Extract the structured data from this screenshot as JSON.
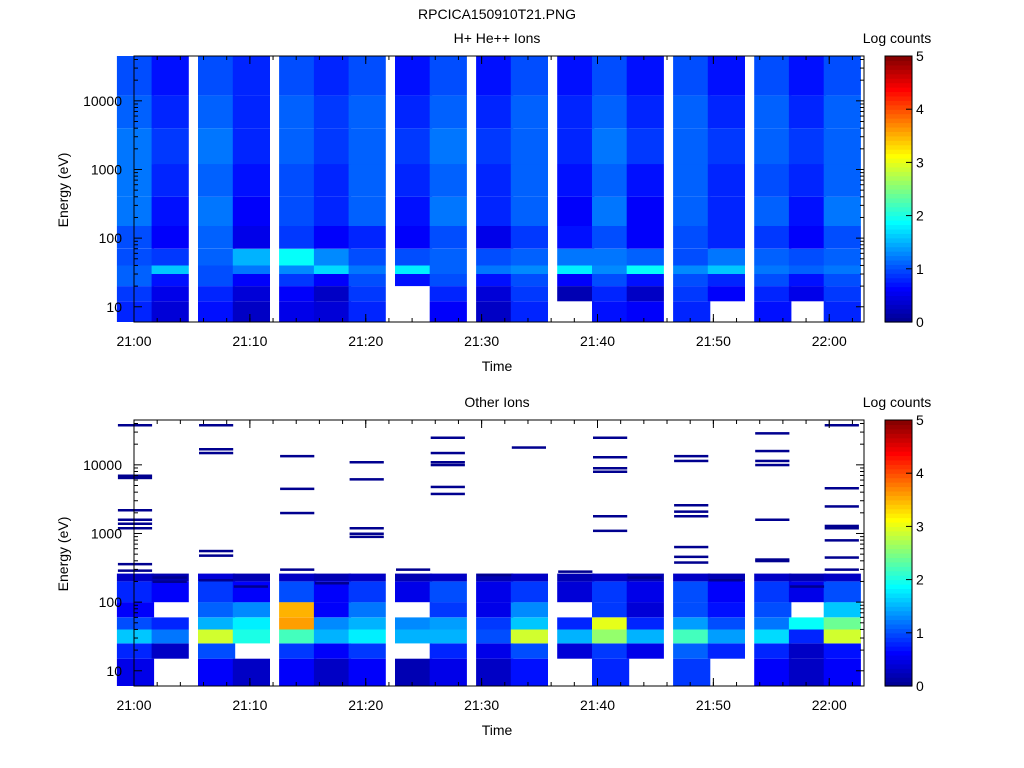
{
  "figure_title": "RPCICA150910T21.PNG",
  "colors": {
    "background": "#ffffff",
    "axis": "#000000",
    "colormap": [
      "#00008f",
      "#0000ff",
      "#0080ff",
      "#00ffff",
      "#80ff80",
      "#ffff00",
      "#ff8000",
      "#ff0000",
      "#800000"
    ]
  },
  "chart_data": [
    {
      "type": "heatmap",
      "title": "H+ He++ Ions",
      "xlabel": "Time",
      "ylabel": "Energy (eV)",
      "y_scale": "log",
      "xlim": [
        "21:00",
        "22:03"
      ],
      "ylim": [
        6,
        45000
      ],
      "x_ticks": [
        "21:00",
        "21:10",
        "21:20",
        "21:30",
        "21:40",
        "21:50",
        "22:00"
      ],
      "y_ticks": [
        "10",
        "100",
        "1000",
        "10000"
      ],
      "colorbar": {
        "label": "Log counts",
        "range": [
          0,
          5
        ],
        "ticks": [
          "0",
          "1",
          "2",
          "3",
          "4",
          "5"
        ]
      },
      "grid": false,
      "time_bins": [
        "21:00",
        "21:03",
        "21:07",
        "21:10",
        "21:14",
        "21:17",
        "21:20",
        "21:24",
        "21:27",
        "21:31",
        "21:34",
        "21:38",
        "21:41",
        "21:44",
        "21:48",
        "21:51",
        "21:55",
        "21:58",
        "22:01"
      ],
      "energy_bands": [
        {
          "range_eV": [
            6,
            12
          ],
          "log_counts": [
            0.8,
            0.4,
            0.7,
            0.3,
            0.5,
            0.4,
            0.8,
            null,
            0.6,
            0.3,
            0.8,
            null,
            0.7,
            0.6,
            0.8,
            null,
            0.7,
            null,
            0.8
          ]
        },
        {
          "range_eV": [
            12,
            20
          ],
          "log_counts": [
            0.9,
            0.5,
            0.8,
            0.4,
            0.6,
            0.3,
            0.9,
            null,
            0.8,
            0.4,
            0.9,
            0.2,
            0.8,
            0.3,
            0.9,
            0.6,
            0.8,
            0.5,
            0.9
          ]
        },
        {
          "range_eV": [
            20,
            30
          ],
          "log_counts": [
            1.1,
            0.7,
            1.0,
            0.6,
            0.9,
            0.6,
            1.0,
            0.7,
            1.0,
            0.7,
            1.0,
            0.6,
            1.0,
            0.7,
            1.0,
            0.8,
            1.0,
            0.7,
            1.0
          ]
        },
        {
          "range_eV": [
            30,
            40
          ],
          "log_counts": [
            1.1,
            1.6,
            1.0,
            1.2,
            1.3,
            1.7,
            1.2,
            1.8,
            1.1,
            1.2,
            1.3,
            1.8,
            1.3,
            1.9,
            1.3,
            1.6,
            1.2,
            1.1,
            1.2
          ]
        },
        {
          "range_eV": [
            40,
            70
          ],
          "log_counts": [
            1.0,
            0.9,
            1.1,
            1.5,
            1.9,
            1.3,
            1.0,
            1.0,
            1.1,
            1.0,
            1.1,
            1.2,
            1.2,
            1.1,
            1.0,
            1.2,
            1.1,
            1.0,
            1.1
          ]
        },
        {
          "range_eV": [
            70,
            150
          ],
          "log_counts": [
            1.0,
            0.6,
            1.1,
            0.5,
            0.9,
            0.6,
            0.8,
            0.6,
            1.0,
            0.5,
            0.9,
            0.7,
            1.0,
            0.6,
            1.0,
            0.8,
            0.9,
            0.6,
            1.0
          ]
        },
        {
          "range_eV": [
            150,
            400
          ],
          "log_counts": [
            1.2,
            0.7,
            1.2,
            0.6,
            1.0,
            0.8,
            1.1,
            0.7,
            1.2,
            0.8,
            1.1,
            0.6,
            1.2,
            0.6,
            1.1,
            0.8,
            1.1,
            0.7,
            1.2
          ]
        },
        {
          "range_eV": [
            400,
            1200
          ],
          "log_counts": [
            1.2,
            0.8,
            1.1,
            0.7,
            1.0,
            0.8,
            1.1,
            0.8,
            1.1,
            0.8,
            1.1,
            0.7,
            1.1,
            0.7,
            1.1,
            0.8,
            1.0,
            0.8,
            1.1
          ]
        },
        {
          "range_eV": [
            1200,
            4000
          ],
          "log_counts": [
            1.2,
            0.9,
            1.2,
            0.8,
            1.1,
            0.9,
            1.1,
            0.9,
            1.2,
            0.9,
            1.1,
            0.8,
            1.2,
            0.9,
            1.1,
            0.9,
            1.1,
            0.9,
            1.1
          ]
        },
        {
          "range_eV": [
            4000,
            12000
          ],
          "log_counts": [
            1.1,
            0.8,
            1.1,
            0.8,
            1.1,
            0.9,
            1.1,
            0.8,
            1.1,
            0.8,
            1.1,
            0.8,
            1.1,
            0.8,
            1.1,
            0.8,
            1.1,
            0.8,
            1.1
          ]
        },
        {
          "range_eV": [
            12000,
            45000
          ],
          "log_counts": [
            1.0,
            0.7,
            1.0,
            0.8,
            1.0,
            0.8,
            1.0,
            0.7,
            1.0,
            0.7,
            1.0,
            0.7,
            1.0,
            0.7,
            1.0,
            0.7,
            1.0,
            0.7,
            1.0
          ]
        }
      ]
    },
    {
      "type": "heatmap",
      "title": "Other Ions",
      "xlabel": "Time",
      "ylabel": "Energy (eV)",
      "y_scale": "log",
      "xlim": [
        "21:00",
        "22:03"
      ],
      "ylim": [
        6,
        45000
      ],
      "x_ticks": [
        "21:00",
        "21:10",
        "21:20",
        "21:30",
        "21:40",
        "21:50",
        "22:00"
      ],
      "y_ticks": [
        "10",
        "100",
        "1000",
        "10000"
      ],
      "colorbar": {
        "label": "Log counts",
        "range": [
          0,
          5
        ],
        "ticks": [
          "0",
          "1",
          "2",
          "3",
          "4",
          "5"
        ]
      },
      "grid": false,
      "time_bins": [
        "21:00",
        "21:03",
        "21:07",
        "21:10",
        "21:14",
        "21:17",
        "21:20",
        "21:24",
        "21:27",
        "21:31",
        "21:34",
        "21:38",
        "21:41",
        "21:44",
        "21:48",
        "21:51",
        "21:55",
        "21:58",
        "22:01"
      ],
      "energy_bands": [
        {
          "range_eV": [
            6,
            15
          ],
          "log_counts": [
            0.5,
            null,
            0.6,
            0.3,
            0.6,
            0.3,
            0.6,
            0.2,
            0.5,
            0.3,
            0.7,
            null,
            0.8,
            null,
            0.9,
            null,
            0.6,
            0.3,
            0.6
          ]
        },
        {
          "range_eV": [
            15,
            25
          ],
          "log_counts": [
            0.8,
            0.3,
            1.0,
            null,
            0.9,
            0.6,
            0.9,
            null,
            0.8,
            0.5,
            1.0,
            0.4,
            0.9,
            0.5,
            1.1,
            0.8,
            0.8,
            0.3,
            0.7
          ]
        },
        {
          "range_eV": [
            25,
            40
          ],
          "log_counts": [
            1.6,
            1.2,
            2.9,
            2.0,
            2.2,
            1.5,
            1.8,
            1.5,
            1.5,
            1.0,
            2.9,
            1.5,
            2.6,
            1.5,
            2.2,
            1.4,
            1.7,
            0.8,
            2.9
          ]
        },
        {
          "range_eV": [
            40,
            60
          ],
          "log_counts": [
            1.0,
            0.8,
            1.5,
            1.8,
            3.6,
            1.3,
            1.5,
            1.3,
            1.4,
            0.9,
            1.6,
            0.8,
            3.0,
            0.8,
            1.4,
            1.0,
            1.2,
            1.9,
            2.4
          ]
        },
        {
          "range_eV": [
            60,
            100
          ],
          "log_counts": [
            0.6,
            null,
            1.1,
            1.3,
            3.5,
            0.6,
            1.2,
            null,
            0.9,
            0.5,
            1.3,
            null,
            0.9,
            0.4,
            1.0,
            0.7,
            1.0,
            null,
            1.6
          ]
        },
        {
          "range_eV": [
            100,
            200
          ],
          "log_counts": [
            0.8,
            0.6,
            0.9,
            0.6,
            1.0,
            0.6,
            0.9,
            0.5,
            1.0,
            0.5,
            0.9,
            0.4,
            0.9,
            0.5,
            1.0,
            0.6,
            0.9,
            0.5,
            1.0
          ]
        },
        {
          "range_eV": [
            200,
            260
          ],
          "log_counts": [
            0.3,
            0.2,
            0.4,
            0.2,
            0.3,
            0.2,
            0.3,
            0.2,
            0.3,
            0.2,
            0.3,
            0.2,
            0.3,
            0.2,
            0.3,
            0.2,
            0.3,
            0.2,
            0.3
          ]
        }
      ],
      "sparse_energy_lines_eV": [
        [
          38000,
          7000,
          6500,
          2200,
          1600,
          1400,
          1200,
          360,
          290
        ],
        [
          230,
          200
        ],
        [
          38000,
          17000,
          15000,
          560,
          480,
          210
        ],
        [
          170
        ],
        [
          13500,
          4500,
          2000,
          300
        ],
        [
          190
        ],
        [
          11000,
          6200,
          1200,
          1000,
          900
        ],
        [
          300
        ],
        [
          25000,
          15000,
          11000,
          10000,
          4800,
          3800
        ],
        [
          250
        ],
        [
          18000
        ],
        [
          280
        ],
        [
          25000,
          13000,
          9000,
          8000,
          1800,
          1100
        ],
        [
          230
        ],
        [
          13500,
          11500,
          2600,
          2100,
          1800,
          640,
          460,
          380
        ],
        [
          210
        ],
        [
          29000,
          16000,
          11500,
          10000,
          1600,
          420,
          400
        ],
        [
          170
        ],
        [
          38000,
          4600,
          2500,
          1300,
          1200,
          800,
          450,
          300
        ]
      ]
    }
  ]
}
